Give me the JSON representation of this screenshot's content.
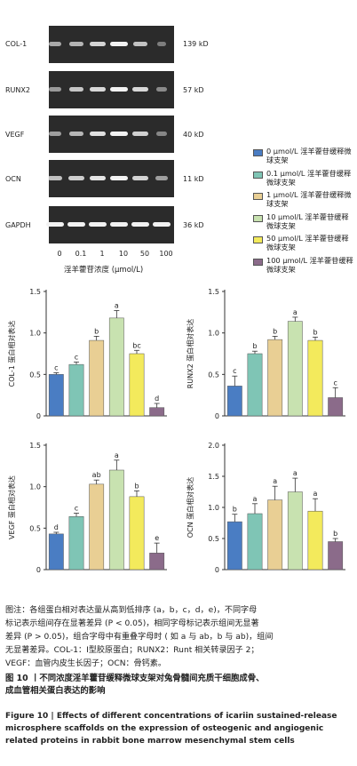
{
  "blot": {
    "rows": [
      {
        "name": "COL-1",
        "kd": "139 kD"
      },
      {
        "name": "RUNX2",
        "kd": "57 kD"
      },
      {
        "name": "VEGF",
        "kd": "40 kD"
      },
      {
        "name": "OCN",
        "kd": "11 kD"
      },
      {
        "name": "GAPDH",
        "kd": "36 kD"
      }
    ],
    "concentrations": [
      "0",
      "0.1",
      "1",
      "10",
      "50",
      "100"
    ],
    "xlabel": "淫羊藿苷浓度 (μmol/L)"
  },
  "legend": [
    {
      "label": "0 μmol/L 淫羊藿苷缓释微球支架",
      "color": "#4a7dc3"
    },
    {
      "label": "0.1 μmol/L 淫羊藿苷缓释微球支架",
      "color": "#7fc5b5"
    },
    {
      "label": "1 μmol/L 淫羊藿苷缓释微球支架",
      "color": "#e9cf94"
    },
    {
      "label": "10 μmol/L 淫羊藿苷缓释微球支架",
      "color": "#c8e2b0"
    },
    {
      "label": "50 μmol/L 淫羊藿苷缓释微球支架",
      "color": "#f3ea5c"
    },
    {
      "label": "100 μmol/L 淫羊藿苷缓释微球支架",
      "color": "#8b6b8a"
    }
  ],
  "chart_data": [
    {
      "type": "bar",
      "ylabel": "COL-1 蛋白相对表达",
      "ylim": [
        0,
        1.5
      ],
      "yticks": [
        "0",
        "0.5",
        "1.0",
        "1.5"
      ],
      "values": [
        0.5,
        0.62,
        0.91,
        1.18,
        0.75,
        0.1
      ],
      "errors": [
        0.02,
        0.03,
        0.05,
        0.09,
        0.04,
        0.05
      ],
      "letters": [
        "c",
        "c",
        "b",
        "a",
        "bc",
        "d"
      ]
    },
    {
      "type": "bar",
      "ylabel": "RUNX2 蛋白相对表达",
      "ylim": [
        0,
        1.5
      ],
      "yticks": [
        "0",
        "0.5",
        "1.0",
        "1.5"
      ],
      "values": [
        0.36,
        0.75,
        0.92,
        1.14,
        0.91,
        0.22
      ],
      "errors": [
        0.12,
        0.03,
        0.04,
        0.05,
        0.04,
        0.12
      ],
      "letters": [
        "c",
        "b",
        "b",
        "a",
        "b",
        "c"
      ]
    },
    {
      "type": "bar",
      "ylabel": "VEGF 蛋白相对表达",
      "ylim": [
        0,
        1.5
      ],
      "yticks": [
        "0",
        "0.5",
        "1.0",
        "1.5"
      ],
      "values": [
        0.43,
        0.64,
        1.03,
        1.2,
        0.88,
        0.2
      ],
      "errors": [
        0.02,
        0.04,
        0.05,
        0.12,
        0.07,
        0.12
      ],
      "letters": [
        "d",
        "c",
        "ab",
        "a",
        "b",
        "e"
      ]
    },
    {
      "type": "bar",
      "ylabel": "OCN 蛋白相对表达",
      "ylim": [
        0,
        2.0
      ],
      "yticks": [
        "0",
        "0.5",
        "1.0",
        "1.5",
        "2.0"
      ],
      "values": [
        0.77,
        0.9,
        1.12,
        1.25,
        0.94,
        0.45
      ],
      "errors": [
        0.12,
        0.16,
        0.22,
        0.22,
        0.2,
        0.05
      ],
      "letters": [
        "b",
        "a",
        "a",
        "a",
        "a",
        "b"
      ]
    }
  ],
  "caption": {
    "note_lines": [
      "图注：各组蛋白相对表达量从高到低排序 (a，b，c，d，e)，不同字母",
      "标记表示组间存在显著差异 (P < 0.05)，相同字母标记表示组间无显著",
      "差异 (P > 0.05)，组合字母中有重叠字母时 ( 如 a 与 ab，b 与 ab)，组间",
      "无显著差异。COL-1：Ⅰ型胶原蛋白；RUNX2：Runt 相关转录因子 2；",
      "VEGF：血管内皮生长因子；OCN：骨钙素。"
    ],
    "title_cn_lines": [
      "图 10 丨不同浓度淫羊藿苷缓释微球支架对兔骨髓间充质干细胞成骨、",
      "成血管相关蛋白表达的影响"
    ],
    "title_en_lines": [
      "Figure 10 | Effects of different concentrations of icariin sustained-release",
      "microsphere scaffolds on the expression of osteogenic and angiogenic",
      "related proteins in rabbit bone marrow mesenchymal stem cells"
    ]
  }
}
